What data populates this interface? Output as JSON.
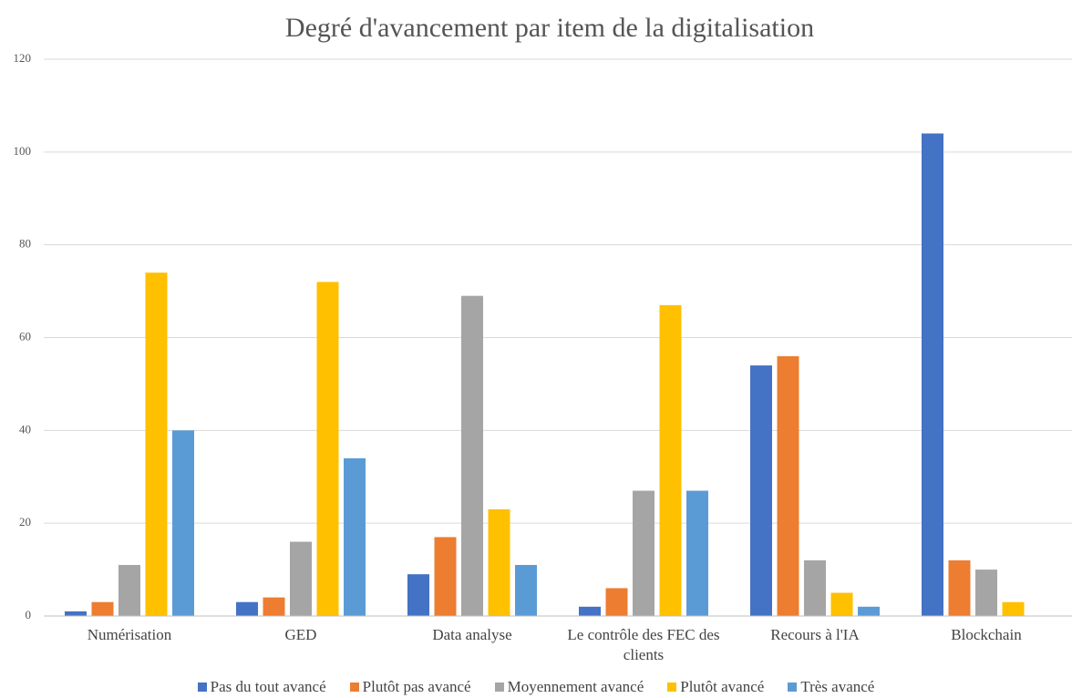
{
  "chart_data": {
    "type": "bar",
    "title": "Degré d'avancement par item de la digitalisation",
    "categories": [
      "Numérisation",
      "GED",
      "Data analyse",
      "Le contrôle des FEC des clients",
      "Recours à l'IA",
      "Blockchain"
    ],
    "series": [
      {
        "name": "Pas du tout avancé",
        "color": "#4472c4",
        "values": [
          1,
          3,
          9,
          2,
          54,
          104
        ]
      },
      {
        "name": "Plutôt pas avancé",
        "color": "#ed7d31",
        "values": [
          3,
          4,
          17,
          6,
          56,
          12
        ]
      },
      {
        "name": "Moyennement avancé",
        "color": "#a5a5a5",
        "values": [
          11,
          16,
          69,
          27,
          12,
          10
        ]
      },
      {
        "name": "Plutôt avancé",
        "color": "#ffc000",
        "values": [
          74,
          72,
          23,
          67,
          5,
          3
        ]
      },
      {
        "name": "Très avancé",
        "color": "#5b9bd5",
        "values": [
          40,
          34,
          11,
          27,
          2,
          0
        ]
      }
    ],
    "ylim": [
      0,
      120
    ],
    "yticks": [
      0,
      20,
      40,
      60,
      80,
      100,
      120
    ],
    "grid": true,
    "legend": "bottom"
  }
}
